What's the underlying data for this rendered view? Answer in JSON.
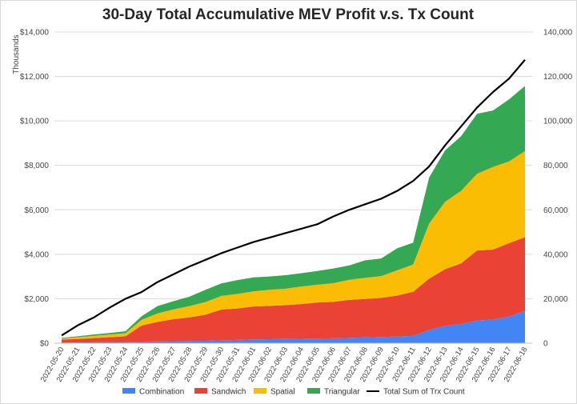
{
  "chart_data": {
    "type": "area",
    "stacked": true,
    "title": "30-Day Total Accumulative MEV Profit v.s. Tx Count",
    "ylabel": "Thousands",
    "y_ticks": [
      "$0",
      "$2,000",
      "$4,000",
      "$6,000",
      "$8,000",
      "$10,000",
      "$12,000",
      "$14,000"
    ],
    "ylim": [
      0,
      14000
    ],
    "y2_ticks": [
      "0",
      "20,000",
      "40,000",
      "60,000",
      "80,000",
      "100,000",
      "120,000",
      "140,000"
    ],
    "y2lim": [
      0,
      140000
    ],
    "grid": true,
    "legend_position": "bottom",
    "categories": [
      "2022-05-20",
      "2022-05-21",
      "2022-05-22",
      "2022-05-23",
      "2022-05-24",
      "2022-05-25",
      "2022-05-26",
      "2022-05-27",
      "2022-05-28",
      "2022-05-29",
      "2022-05-30",
      "2022-05-31",
      "2022-06-01",
      "2022-06-02",
      "2022-06-03",
      "2022-06-04",
      "2022-06-05",
      "2022-06-06",
      "2022-06-07",
      "2022-06-08",
      "2022-06-09",
      "2022-06-10",
      "2022-06-11",
      "2022-06-12",
      "2022-06-13",
      "2022-06-14",
      "2022-06-15",
      "2022-06-16",
      "2022-06-17",
      "2022-06-18"
    ],
    "series": [
      {
        "name": "Combination",
        "color": "#4285f4",
        "axis": "left",
        "kind": "area",
        "values": [
          20,
          30,
          40,
          50,
          60,
          70,
          80,
          90,
          100,
          110,
          130,
          150,
          170,
          180,
          190,
          200,
          210,
          220,
          240,
          260,
          280,
          300,
          330,
          600,
          780,
          870,
          1020,
          1060,
          1200,
          1450
        ]
      },
      {
        "name": "Sandwich",
        "color": "#ea4335",
        "axis": "left",
        "kind": "area",
        "values": [
          140,
          160,
          190,
          220,
          250,
          720,
          880,
          990,
          1060,
          1170,
          1380,
          1410,
          1480,
          1500,
          1520,
          1560,
          1620,
          1640,
          1710,
          1730,
          1760,
          1840,
          1980,
          2300,
          2550,
          2720,
          3150,
          3150,
          3300,
          3320
        ]
      },
      {
        "name": "Spatial",
        "color": "#fbbc04",
        "axis": "left",
        "kind": "area",
        "values": [
          50,
          80,
          100,
          120,
          140,
          260,
          380,
          440,
          510,
          570,
          620,
          660,
          680,
          720,
          740,
          790,
          800,
          840,
          900,
          950,
          980,
          1140,
          1230,
          2480,
          3030,
          3260,
          3450,
          3720,
          3680,
          3870
        ]
      },
      {
        "name": "Triangular",
        "color": "#34a853",
        "axis": "left",
        "kind": "area",
        "values": [
          30,
          40,
          60,
          70,
          90,
          160,
          330,
          370,
          420,
          550,
          560,
          620,
          630,
          600,
          610,
          600,
          620,
          660,
          650,
          790,
          790,
          990,
          980,
          2070,
          2320,
          2460,
          2700,
          2540,
          2790,
          2930
        ]
      },
      {
        "name": "Total Sum of Trx Count",
        "color": "#000000",
        "axis": "right",
        "kind": "line",
        "values": [
          3500,
          8000,
          11500,
          16000,
          20000,
          23000,
          27500,
          31000,
          34500,
          37500,
          40500,
          43000,
          45500,
          47500,
          49500,
          51500,
          53500,
          57000,
          60000,
          62500,
          65000,
          68500,
          73000,
          79500,
          89000,
          97500,
          106000,
          113000,
          119000,
          127500
        ]
      }
    ]
  }
}
